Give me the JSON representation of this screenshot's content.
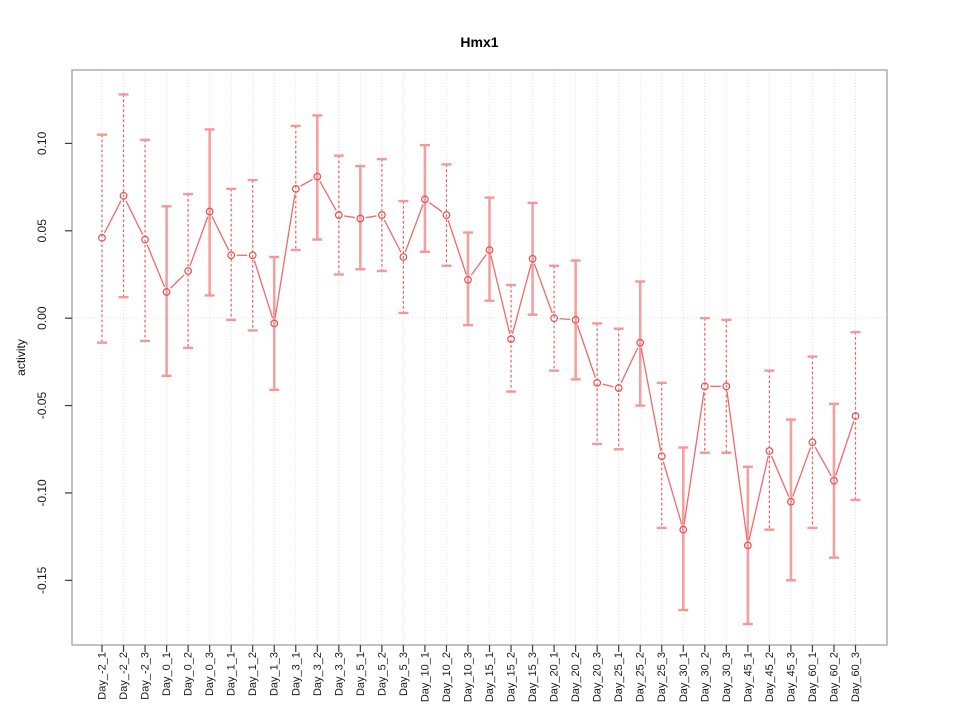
{
  "title": "Hmx1",
  "colors": {
    "point_stroke": "#e94f4f",
    "connect_line": "#f16a6a",
    "bar_solid": "#f5a0a0",
    "bar_dashed": "#ee5c5c",
    "cap": "#f49898",
    "grid": "#dcdcdc",
    "box": "#9b9b9b",
    "tick": "#3c3c3c",
    "text": "#1a1a1a",
    "background": "#ffffff"
  },
  "chart_data": {
    "type": "scatter",
    "error_bars": true,
    "title": "Hmx1",
    "xlabel": "",
    "ylabel": "activity",
    "legend": "none",
    "grid": {
      "vertical_dotted_per_category": true,
      "zero_line_dotted": true
    },
    "ylim": [
      -0.187,
      0.142
    ],
    "y_tick_labels": [
      "0.10",
      "0.05",
      "0.00",
      "-0.05",
      "-0.10",
      "-0.15"
    ],
    "categories": [
      "Day_-2_1",
      "Day_-2_2",
      "Day_-2_3",
      "Day_0_1",
      "Day_0_2",
      "Day_0_3",
      "Day_1_1",
      "Day_1_2",
      "Day_1_3",
      "Day_3_1",
      "Day_3_2",
      "Day_3_3",
      "Day_5_1",
      "Day_5_2",
      "Day_5_3",
      "Day_10_1",
      "Day_10_2",
      "Day_10_3",
      "Day_15_1",
      "Day_15_2",
      "Day_15_3",
      "Day_20_1",
      "Day_20_2",
      "Day_20_3",
      "Day_25_1",
      "Day_25_2",
      "Day_25_3",
      "Day_30_1",
      "Day_30_2",
      "Day_30_3",
      "Day_45_1",
      "Day_45_2",
      "Day_45_3",
      "Day_60_1",
      "Day_60_2",
      "Day_60_3"
    ],
    "series": [
      {
        "name": "Hmx1 activity",
        "values": [
          0.046,
          0.07,
          0.045,
          0.015,
          0.027,
          0.061,
          0.036,
          0.036,
          -0.003,
          0.074,
          0.081,
          0.059,
          0.057,
          0.059,
          0.035,
          0.068,
          0.059,
          0.022,
          0.039,
          -0.012,
          0.034,
          0.0,
          -0.001,
          -0.037,
          -0.04,
          -0.014,
          -0.079,
          -0.121,
          -0.039,
          -0.039,
          -0.13,
          -0.076,
          -0.105,
          -0.071,
          -0.093,
          -0.056
        ],
        "lower": [
          -0.014,
          0.012,
          -0.013,
          -0.033,
          -0.017,
          0.013,
          -0.001,
          -0.007,
          -0.041,
          0.039,
          0.045,
          0.025,
          0.028,
          0.027,
          0.003,
          0.038,
          0.03,
          -0.004,
          0.01,
          -0.042,
          0.002,
          -0.03,
          -0.035,
          -0.072,
          -0.075,
          -0.05,
          -0.12,
          -0.167,
          -0.077,
          -0.077,
          -0.175,
          -0.121,
          -0.15,
          -0.12,
          -0.137,
          -0.104
        ],
        "upper": [
          0.105,
          0.128,
          0.102,
          0.064,
          0.071,
          0.108,
          0.074,
          0.079,
          0.035,
          0.11,
          0.116,
          0.093,
          0.087,
          0.091,
          0.067,
          0.099,
          0.088,
          0.049,
          0.069,
          0.019,
          0.066,
          0.03,
          0.033,
          -0.003,
          -0.006,
          0.021,
          -0.037,
          -0.074,
          0.0,
          -0.001,
          -0.085,
          -0.03,
          -0.058,
          -0.022,
          -0.049,
          -0.008
        ],
        "bar_styles": [
          "dashed",
          "dashed",
          "dashed",
          "solid",
          "dashed",
          "solid",
          "dashed",
          "dashed",
          "solid",
          "dashed",
          "solid",
          "dashed",
          "solid",
          "dashed",
          "dashed",
          "solid",
          "dashed",
          "solid",
          "solid",
          "dashed",
          "solid",
          "dashed",
          "solid",
          "dashed",
          "dashed",
          "solid",
          "dashed",
          "solid",
          "dashed",
          "dashed",
          "solid",
          "dashed",
          "solid",
          "dashed",
          "solid",
          "dashed"
        ]
      }
    ]
  }
}
